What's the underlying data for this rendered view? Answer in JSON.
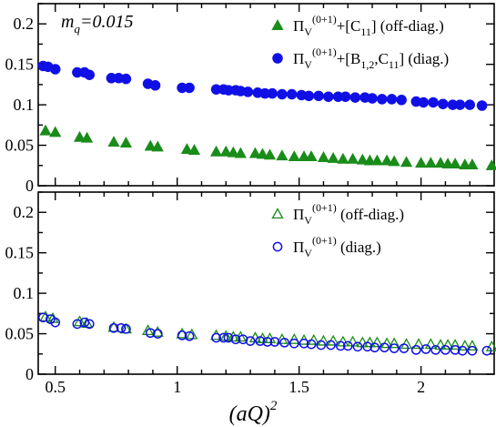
{
  "chart_data": [
    {
      "type": "scatter",
      "xlabel": "(aQ)",
      "xlabel_sup": "2",
      "ylabel": "",
      "annotation": "m",
      "annotation_sub": "q",
      "annotation_value": "=0.015",
      "xlim": [
        0.43,
        2.3
      ],
      "ylim": [
        0,
        0.225
      ],
      "xticks": [
        0.5,
        1,
        1.5,
        2
      ],
      "yticks": [
        0,
        0.05,
        0.1,
        0.15,
        0.2
      ],
      "xtick_labels": [
        "0.5",
        "1",
        "1.5",
        "2"
      ],
      "ytick_labels": [
        "0",
        "0.05",
        "0.1",
        "0.15",
        "0.2"
      ],
      "legend_position": "top-right",
      "series": [
        {
          "legend_html": "Π<tspan font-size='12' dy='5'>V</tspan><tspan font-size='12' dy='-14'>(0+1)</tspan><tspan dy='9'>+[C</tspan><tspan font-size='12' dy='5'>11</tspan><tspan dy='-5'>] (off-diag.)</tspan>",
          "marker": "triangle-filled",
          "color": "#1a8c1a",
          "x": [
            0.46,
            0.5,
            0.6,
            0.63,
            0.74,
            0.79,
            0.89,
            0.92,
            1.04,
            1.07,
            1.16,
            1.2,
            1.23,
            1.26,
            1.32,
            1.35,
            1.38,
            1.43,
            1.48,
            1.52,
            1.55,
            1.6,
            1.64,
            1.68,
            1.72,
            1.76,
            1.79,
            1.82,
            1.86,
            1.89,
            1.94,
            2.0,
            2.04,
            2.08,
            2.11,
            2.14,
            2.18,
            2.21,
            2.29
          ],
          "y": [
            0.068,
            0.066,
            0.06,
            0.059,
            0.054,
            0.053,
            0.049,
            0.048,
            0.045,
            0.044,
            0.042,
            0.042,
            0.041,
            0.04,
            0.04,
            0.039,
            0.038,
            0.037,
            0.036,
            0.036,
            0.036,
            0.035,
            0.034,
            0.033,
            0.033,
            0.032,
            0.031,
            0.031,
            0.031,
            0.03,
            0.029,
            0.028,
            0.028,
            0.028,
            0.027,
            0.027,
            0.026,
            0.026,
            0.025
          ]
        },
        {
          "legend_html": "Π<tspan font-size='12' dy='5'>V</tspan><tspan font-size='12' dy='-14'>(0+1)</tspan><tspan dy='9'>+[B</tspan><tspan font-size='12' dy='5'>1,2</tspan><tspan dy='-5'>,C</tspan><tspan font-size='12' dy='5'>11</tspan><tspan dy='-5'>] (diag.)</tspan>",
          "marker": "circle-filled",
          "color": "#1010e6",
          "x": [
            0.45,
            0.47,
            0.5,
            0.59,
            0.62,
            0.64,
            0.73,
            0.76,
            0.79,
            0.88,
            0.91,
            1.02,
            1.05,
            1.16,
            1.19,
            1.21,
            1.24,
            1.26,
            1.29,
            1.33,
            1.36,
            1.39,
            1.43,
            1.47,
            1.51,
            1.54,
            1.58,
            1.62,
            1.66,
            1.69,
            1.73,
            1.77,
            1.8,
            1.84,
            1.88,
            1.92,
            1.98,
            2.01,
            2.05,
            2.09,
            2.13,
            2.16,
            2.2,
            2.25
          ],
          "y": [
            0.148,
            0.147,
            0.144,
            0.14,
            0.14,
            0.137,
            0.133,
            0.133,
            0.132,
            0.126,
            0.124,
            0.121,
            0.121,
            0.119,
            0.119,
            0.118,
            0.118,
            0.117,
            0.116,
            0.115,
            0.114,
            0.114,
            0.113,
            0.113,
            0.112,
            0.111,
            0.111,
            0.11,
            0.11,
            0.11,
            0.109,
            0.109,
            0.108,
            0.107,
            0.107,
            0.106,
            0.104,
            0.103,
            0.103,
            0.101,
            0.1,
            0.1,
            0.1,
            0.099
          ]
        }
      ]
    },
    {
      "type": "scatter",
      "xlim": [
        0.43,
        2.3
      ],
      "ylim": [
        0,
        0.225
      ],
      "legend_position": "top-right",
      "series": [
        {
          "legend_html": "Π<tspan font-size='12' dy='5'>V</tspan><tspan font-size='12' dy='-14'>(0+1)</tspan><tspan dy='9'> (off-diag.)</tspan>",
          "marker": "triangle-open",
          "color": "#1a8c1a",
          "x": [
            0.46,
            0.49,
            0.6,
            0.63,
            0.74,
            0.79,
            0.88,
            0.92,
            1.02,
            1.06,
            1.16,
            1.2,
            1.23,
            1.26,
            1.32,
            1.35,
            1.38,
            1.43,
            1.48,
            1.52,
            1.56,
            1.6,
            1.64,
            1.68,
            1.72,
            1.76,
            1.79,
            1.82,
            1.86,
            1.89,
            1.94,
            1.99,
            2.04,
            2.08,
            2.11,
            2.14,
            2.18,
            2.21,
            2.29
          ],
          "y": [
            0.071,
            0.069,
            0.065,
            0.063,
            0.058,
            0.056,
            0.054,
            0.052,
            0.05,
            0.049,
            0.048,
            0.047,
            0.046,
            0.046,
            0.045,
            0.044,
            0.044,
            0.043,
            0.043,
            0.042,
            0.042,
            0.041,
            0.041,
            0.04,
            0.04,
            0.039,
            0.039,
            0.039,
            0.038,
            0.038,
            0.037,
            0.037,
            0.037,
            0.036,
            0.036,
            0.036,
            0.035,
            0.035,
            0.034
          ]
        },
        {
          "legend_html": "Π<tspan font-size='12' dy='5'>V</tspan><tspan font-size='12' dy='-14'>(0+1)</tspan><tspan dy='9'> (diag.)</tspan>",
          "marker": "circle-open",
          "color": "#1010e6",
          "x": [
            0.45,
            0.48,
            0.5,
            0.59,
            0.62,
            0.64,
            0.74,
            0.77,
            0.79,
            0.89,
            0.92,
            1.02,
            1.05,
            1.16,
            1.19,
            1.21,
            1.24,
            1.27,
            1.3,
            1.34,
            1.37,
            1.4,
            1.44,
            1.48,
            1.52,
            1.55,
            1.59,
            1.63,
            1.67,
            1.7,
            1.74,
            1.78,
            1.81,
            1.85,
            1.89,
            1.93,
            1.98,
            2.02,
            2.06,
            2.1,
            2.14,
            2.17,
            2.21,
            2.27
          ],
          "y": [
            0.07,
            0.068,
            0.064,
            0.062,
            0.064,
            0.062,
            0.057,
            0.057,
            0.056,
            0.051,
            0.05,
            0.048,
            0.047,
            0.045,
            0.045,
            0.045,
            0.043,
            0.043,
            0.041,
            0.041,
            0.04,
            0.04,
            0.039,
            0.038,
            0.038,
            0.037,
            0.036,
            0.036,
            0.035,
            0.035,
            0.034,
            0.034,
            0.033,
            0.033,
            0.032,
            0.032,
            0.03,
            0.031,
            0.03,
            0.03,
            0.03,
            0.029,
            0.029,
            0.029
          ]
        }
      ]
    }
  ]
}
